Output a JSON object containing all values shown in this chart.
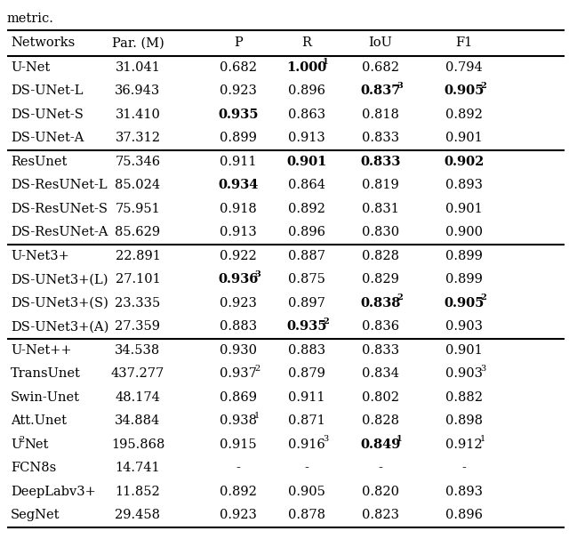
{
  "title_text": "metric.",
  "headers": [
    "Networks",
    "Par. (M)",
    "P",
    "R",
    "IoU",
    "F1"
  ],
  "rows": [
    [
      "U-Net",
      "31.041",
      "0.682",
      "1.000",
      "0.682",
      "0.794"
    ],
    [
      "DS-UNet-L",
      "36.943",
      "0.923",
      "0.896",
      "0.837",
      "0.905"
    ],
    [
      "DS-UNet-S",
      "31.410",
      "0.935",
      "0.863",
      "0.818",
      "0.892"
    ],
    [
      "DS-UNet-A",
      "37.312",
      "0.899",
      "0.913",
      "0.833",
      "0.901"
    ],
    [
      "ResUnet",
      "75.346",
      "0.911",
      "0.901",
      "0.833",
      "0.902"
    ],
    [
      "DS-ResUNet-L",
      "85.024",
      "0.934",
      "0.864",
      "0.819",
      "0.893"
    ],
    [
      "DS-ResUNet-S",
      "75.951",
      "0.918",
      "0.892",
      "0.831",
      "0.901"
    ],
    [
      "DS-ResUNet-A",
      "85.629",
      "0.913",
      "0.896",
      "0.830",
      "0.900"
    ],
    [
      "U-Net3+",
      "22.891",
      "0.922",
      "0.887",
      "0.828",
      "0.899"
    ],
    [
      "DS-UNet3+(L)",
      "27.101",
      "0.936",
      "0.875",
      "0.829",
      "0.899"
    ],
    [
      "DS-UNet3+(S)",
      "23.335",
      "0.923",
      "0.897",
      "0.838",
      "0.905"
    ],
    [
      "DS-UNet3+(A)",
      "27.359",
      "0.883",
      "0.935",
      "0.836",
      "0.903"
    ],
    [
      "U-Net++",
      "34.538",
      "0.930",
      "0.883",
      "0.833",
      "0.901"
    ],
    [
      "TransUnet",
      "437.277",
      "0.937",
      "0.879",
      "0.834",
      "0.903"
    ],
    [
      "Swin-Unet",
      "48.174",
      "0.869",
      "0.911",
      "0.802",
      "0.882"
    ],
    [
      "Att.Unet",
      "34.884",
      "0.938",
      "0.871",
      "0.828",
      "0.898"
    ],
    [
      "U2Net",
      "195.868",
      "0.915",
      "0.916",
      "0.849",
      "0.912"
    ],
    [
      "FCN8s",
      "14.741",
      "-",
      "-",
      "-",
      "-"
    ],
    [
      "DeepLabv3+",
      "11.852",
      "0.892",
      "0.905",
      "0.820",
      "0.893"
    ],
    [
      "SegNet",
      "29.458",
      "0.923",
      "0.878",
      "0.823",
      "0.896"
    ]
  ],
  "bold_cells": {
    "0": {
      "3": true
    },
    "1": {
      "4": true,
      "5": true
    },
    "2": {
      "2": true
    },
    "4": {
      "3": true,
      "4": true,
      "5": true
    },
    "5": {
      "2": true
    },
    "9": {
      "2": true
    },
    "10": {
      "4": true,
      "5": true
    },
    "11": {
      "3": true
    },
    "16": {
      "4": true
    }
  },
  "superscripts": {
    "0_3": "1",
    "1_4": "3",
    "1_5": "2",
    "9_2": "3",
    "10_4": "2",
    "10_5": "2",
    "11_3": "2",
    "13_2": "2",
    "13_5": "3",
    "15_2": "1",
    "16_3": "3",
    "16_4": "1",
    "16_5": "1"
  },
  "group_sep_after": [
    3,
    7,
    11
  ],
  "background_color": "#ffffff",
  "font_size": 10.5,
  "sup_font_size": 7.0
}
